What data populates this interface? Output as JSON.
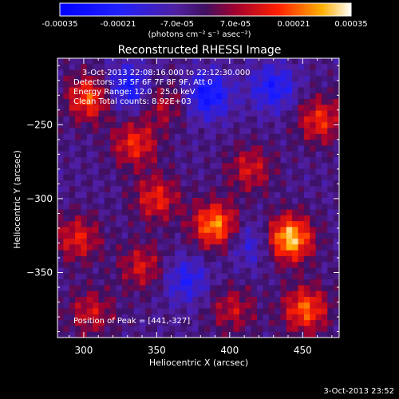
{
  "colorbar": {
    "ticks": [
      "-0.00035",
      "-0.00021",
      "-7.0e-05",
      "7.0e-05",
      "0.00021",
      "0.00035"
    ],
    "unit": "(photons cm⁻² s⁻¹ asec⁻²)"
  },
  "annotations": {
    "time": "3-Oct-2013 22:08:16.000 to 22:12:30.000",
    "detectors": "Detectors: 3F 5F 6F 7F 8F 9F, Att 0",
    "energy": "Energy Range: 12.0 - 25.0 keV",
    "clean": "Clean     Total counts: 8.92E+03",
    "peak": "Position of Peak = [441,-327]"
  },
  "footer": {
    "timestamp": "3-Oct-2013 23:52"
  },
  "colors": {
    "low": "#0000ff",
    "mid": "#3a1080",
    "high": "#ffffff",
    "hot": "#ff2000"
  },
  "chart_data": {
    "type": "heatmap",
    "title": "Reconstructed RHESSI Image",
    "xlabel": "Heliocentric X (arcsec)",
    "ylabel": "Heliocentric Y (arcsec)",
    "xlim": [
      282,
      475
    ],
    "ylim": [
      -394,
      -205
    ],
    "xticks": [
      300,
      350,
      400,
      450
    ],
    "yticks": [
      -250,
      -300,
      -350
    ],
    "peak": [
      441,
      -327
    ],
    "clim": [
      -0.00035,
      0.00035
    ],
    "sources": [
      {
        "x": 441,
        "y": -327,
        "strength": 0.00035
      },
      {
        "x": 390,
        "y": -318,
        "strength": 0.00029
      },
      {
        "x": 452,
        "y": -375,
        "strength": 0.00025
      },
      {
        "x": 304,
        "y": -232,
        "strength": 0.00024
      },
      {
        "x": 335,
        "y": -263,
        "strength": 0.0002
      },
      {
        "x": 462,
        "y": -247,
        "strength": 0.0002
      },
      {
        "x": 350,
        "y": -300,
        "strength": 0.00019
      },
      {
        "x": 296,
        "y": -327,
        "strength": 0.00018
      },
      {
        "x": 340,
        "y": -346,
        "strength": 0.00016
      },
      {
        "x": 414,
        "y": -280,
        "strength": 0.00016
      },
      {
        "x": 305,
        "y": -377,
        "strength": 0.00015
      },
      {
        "x": 402,
        "y": -375,
        "strength": 0.00014
      },
      {
        "x": 355,
        "y": -236,
        "strength": 0.00013
      }
    ],
    "negative_sources": [
      {
        "x": 330,
        "y": -225,
        "strength": -0.0002
      },
      {
        "x": 385,
        "y": -230,
        "strength": -0.00022
      },
      {
        "x": 430,
        "y": -225,
        "strength": -0.00018
      },
      {
        "x": 370,
        "y": -355,
        "strength": -0.00015
      },
      {
        "x": 415,
        "y": -330,
        "strength": -0.00012
      }
    ]
  }
}
